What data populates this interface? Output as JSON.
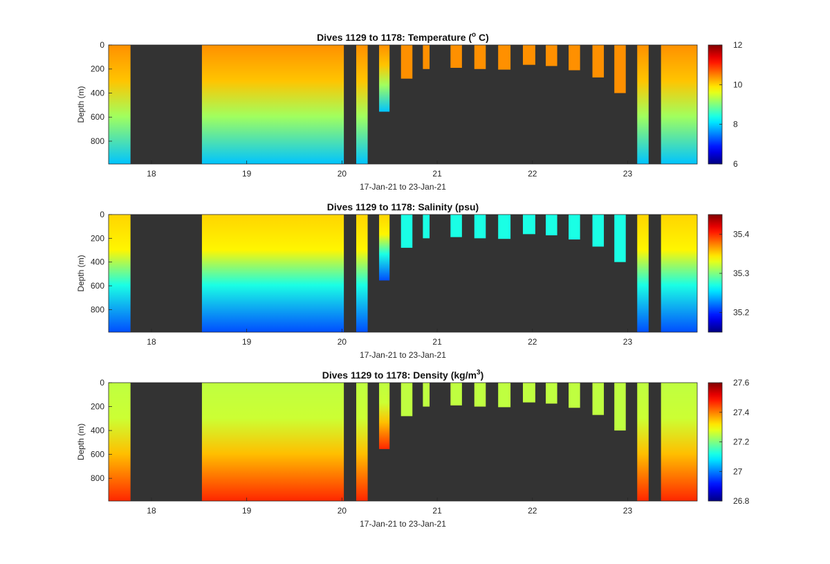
{
  "chart_data": [
    {
      "type": "heatmap",
      "title_main": "Dives 1129 to 1178: Temperature (",
      "title_sup": "o",
      "title_end": " C)",
      "xlabel": "17-Jan-21 to 23-Jan-21",
      "ylabel": "Depth (m)",
      "xticks": [
        18,
        19,
        20,
        21,
        22,
        23
      ],
      "yticks": [
        0,
        200,
        400,
        600,
        800
      ],
      "xlim": [
        17.55,
        23.73
      ],
      "ylim": [
        0,
        990
      ],
      "colorbar": {
        "min": 6,
        "max": 12,
        "ticks": [
          6,
          8,
          10,
          12
        ]
      },
      "profile": {
        "surface": 10.4,
        "mid": 10.1,
        "deep": 9.2,
        "bottom": 7.9
      }
    },
    {
      "type": "heatmap",
      "title_main": "Dives 1129 to 1178: Salinity (psu)",
      "xlabel": "17-Jan-21 to 23-Jan-21",
      "ylabel": "Depth (m)",
      "xticks": [
        18,
        19,
        20,
        21,
        22,
        23
      ],
      "yticks": [
        0,
        200,
        400,
        600,
        800
      ],
      "xlim": [
        17.55,
        23.73
      ],
      "ylim": [
        0,
        990
      ],
      "colorbar": {
        "min": 35.15,
        "max": 35.45,
        "ticks": [
          35.2,
          35.3,
          35.4
        ]
      },
      "profile": {
        "surface": 35.35,
        "mid": 35.34,
        "deep": 35.27,
        "bottom": 35.21
      },
      "shallow_value": 35.27
    },
    {
      "type": "heatmap",
      "title_main": "Dives 1129 to 1178: Density (kg/m",
      "title_sup": "3",
      "title_end": ")",
      "xlabel": "17-Jan-21 to 23-Jan-21",
      "ylabel": "Depth (m)",
      "xticks": [
        18,
        19,
        20,
        21,
        22,
        23
      ],
      "yticks": [
        0,
        200,
        400,
        600,
        800
      ],
      "xlim": [
        17.55,
        23.73
      ],
      "ylim": [
        0,
        990
      ],
      "colorbar": {
        "min": 26.8,
        "max": 27.6,
        "ticks": [
          26.8,
          27,
          27.2,
          27.4,
          27.6
        ]
      },
      "profile": {
        "surface": 27.25,
        "mid": 27.26,
        "deep": 27.35,
        "bottom": 27.47
      }
    }
  ],
  "dives": {
    "full_segments": [
      [
        17.55,
        17.78
      ],
      [
        18.53,
        20.02
      ],
      [
        20.15,
        20.27
      ],
      [
        23.1,
        23.22
      ],
      [
        23.35,
        23.73
      ]
    ],
    "shallow_casts": [
      {
        "x": [
          20.39,
          20.5
        ],
        "depth": 555
      },
      {
        "x": [
          20.62,
          20.74
        ],
        "depth": 280
      },
      {
        "x": [
          20.85,
          20.92
        ],
        "depth": 200
      },
      {
        "x": [
          21.14,
          21.26
        ],
        "depth": 190
      },
      {
        "x": [
          21.39,
          21.51
        ],
        "depth": 200
      },
      {
        "x": [
          21.64,
          21.77
        ],
        "depth": 205
      },
      {
        "x": [
          21.9,
          22.03
        ],
        "depth": 165
      },
      {
        "x": [
          22.14,
          22.26
        ],
        "depth": 175
      },
      {
        "x": [
          22.38,
          22.5
        ],
        "depth": 210
      },
      {
        "x": [
          22.63,
          22.75
        ],
        "depth": 270
      },
      {
        "x": [
          22.86,
          22.98
        ],
        "depth": 400
      }
    ],
    "nodata_color": "#333333"
  }
}
